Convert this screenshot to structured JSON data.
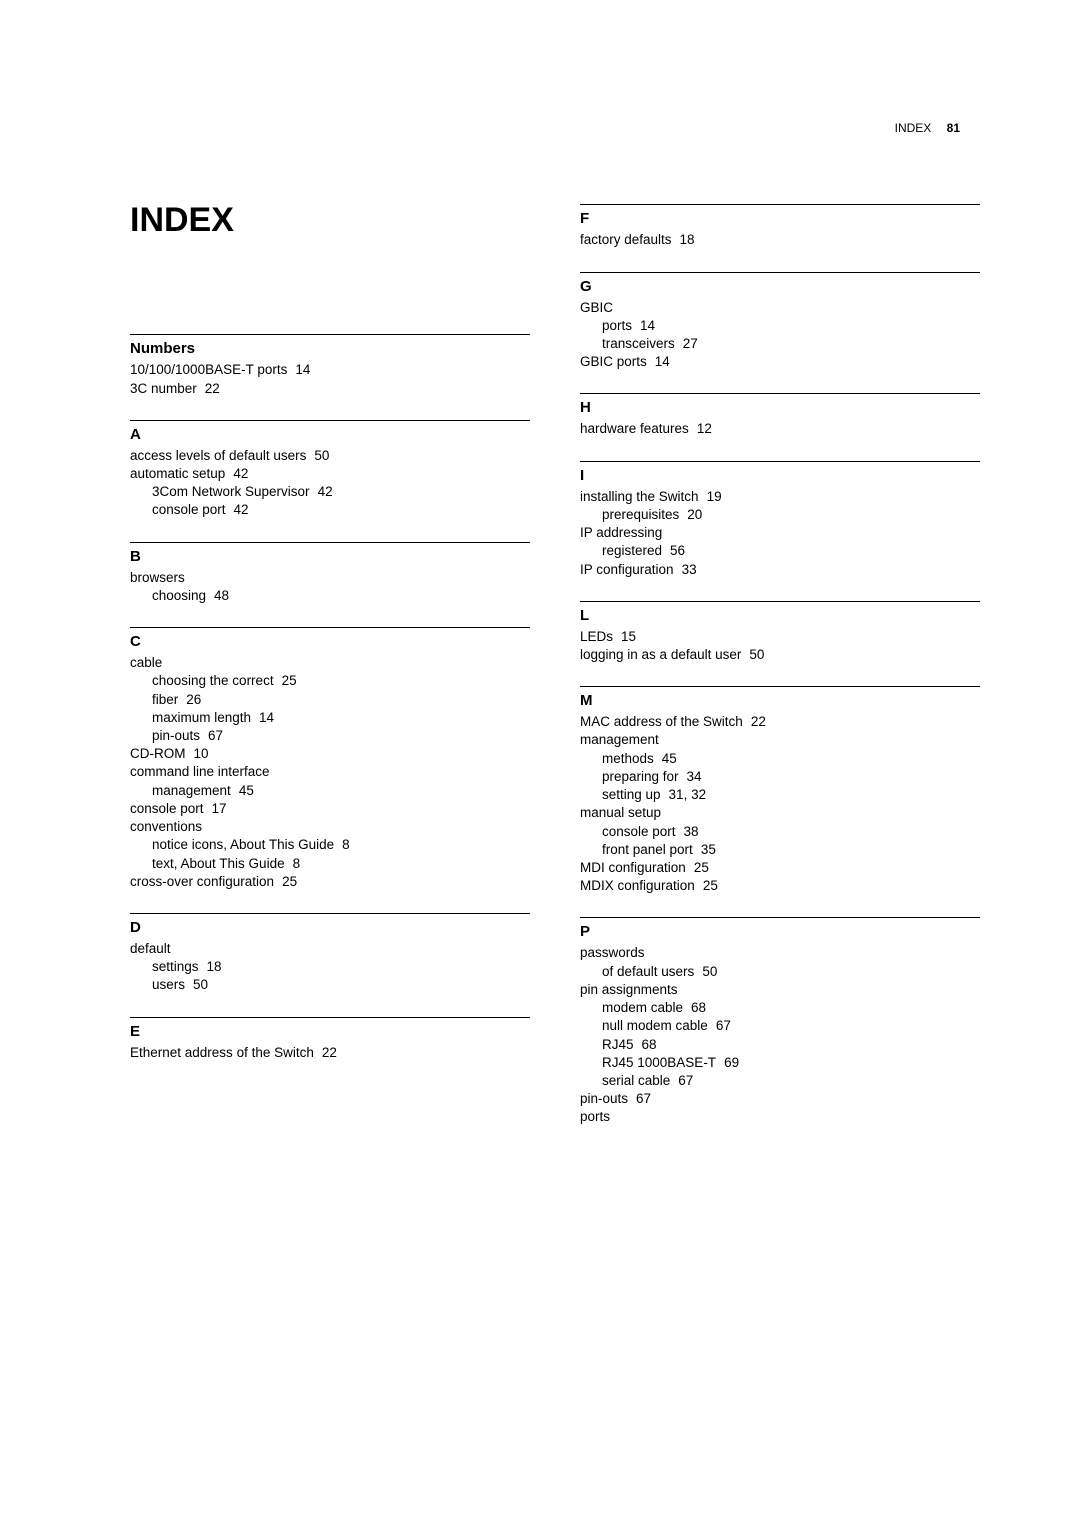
{
  "page_header": {
    "label": "INDEX",
    "number": "81"
  },
  "title": "INDEX",
  "left_sections": [
    {
      "letter": "Numbers",
      "entries": [
        {
          "text": "10/100/1000BASE-T ports",
          "page": "14",
          "sub": false
        },
        {
          "text": "3C number",
          "page": "22",
          "sub": false
        }
      ]
    },
    {
      "letter": "A",
      "entries": [
        {
          "text": "access levels of default users",
          "page": "50",
          "sub": false
        },
        {
          "text": "automatic setup",
          "page": "42",
          "sub": false
        },
        {
          "text": "3Com Network Supervisor",
          "page": "42",
          "sub": true
        },
        {
          "text": "console port",
          "page": "42",
          "sub": true
        }
      ]
    },
    {
      "letter": "B",
      "entries": [
        {
          "text": "browsers",
          "page": "",
          "sub": false
        },
        {
          "text": "choosing",
          "page": "48",
          "sub": true
        }
      ]
    },
    {
      "letter": "C",
      "entries": [
        {
          "text": "cable",
          "page": "",
          "sub": false
        },
        {
          "text": "choosing the correct",
          "page": "25",
          "sub": true
        },
        {
          "text": "fiber",
          "page": "26",
          "sub": true
        },
        {
          "text": "maximum length",
          "page": "14",
          "sub": true
        },
        {
          "text": "pin-outs",
          "page": "67",
          "sub": true
        },
        {
          "text": "CD-ROM",
          "page": "10",
          "sub": false
        },
        {
          "text": "command line interface",
          "page": "",
          "sub": false
        },
        {
          "text": "management",
          "page": "45",
          "sub": true
        },
        {
          "text": "console port",
          "page": "17",
          "sub": false
        },
        {
          "text": "conventions",
          "page": "",
          "sub": false
        },
        {
          "text": "notice icons, About This Guide",
          "page": "8",
          "sub": true
        },
        {
          "text": "text, About This Guide",
          "page": "8",
          "sub": true
        },
        {
          "text": "cross-over configuration",
          "page": "25",
          "sub": false
        }
      ]
    },
    {
      "letter": "D",
      "entries": [
        {
          "text": "default",
          "page": "",
          "sub": false
        },
        {
          "text": "settings",
          "page": "18",
          "sub": true
        },
        {
          "text": "users",
          "page": "50",
          "sub": true
        }
      ]
    },
    {
      "letter": "E",
      "entries": [
        {
          "text": "Ethernet address of the Switch",
          "page": "22",
          "sub": false
        }
      ]
    }
  ],
  "right_sections": [
    {
      "letter": "F",
      "entries": [
        {
          "text": "factory defaults",
          "page": "18",
          "sub": false
        }
      ]
    },
    {
      "letter": "G",
      "entries": [
        {
          "text": "GBIC",
          "page": "",
          "sub": false
        },
        {
          "text": "ports",
          "page": "14",
          "sub": true
        },
        {
          "text": "transceivers",
          "page": "27",
          "sub": true
        },
        {
          "text": "GBIC ports",
          "page": "14",
          "sub": false
        }
      ]
    },
    {
      "letter": "H",
      "entries": [
        {
          "text": "hardware features",
          "page": "12",
          "sub": false
        }
      ]
    },
    {
      "letter": "I",
      "entries": [
        {
          "text": "installing the Switch",
          "page": "19",
          "sub": false
        },
        {
          "text": "prerequisites",
          "page": "20",
          "sub": true
        },
        {
          "text": "IP addressing",
          "page": "",
          "sub": false
        },
        {
          "text": "registered",
          "page": "56",
          "sub": true
        },
        {
          "text": "IP configuration",
          "page": "33",
          "sub": false
        }
      ]
    },
    {
      "letter": "L",
      "entries": [
        {
          "text": "LEDs",
          "page": "15",
          "sub": false
        },
        {
          "text": "logging in as a default user",
          "page": "50",
          "sub": false
        }
      ]
    },
    {
      "letter": "M",
      "entries": [
        {
          "text": "MAC address of the Switch",
          "page": "22",
          "sub": false
        },
        {
          "text": "management",
          "page": "",
          "sub": false
        },
        {
          "text": "methods",
          "page": "45",
          "sub": true
        },
        {
          "text": "preparing for",
          "page": "34",
          "sub": true
        },
        {
          "text": "setting up",
          "page": "31, 32",
          "sub": true
        },
        {
          "text": "manual setup",
          "page": "",
          "sub": false
        },
        {
          "text": "console port",
          "page": "38",
          "sub": true
        },
        {
          "text": "front panel port",
          "page": "35",
          "sub": true
        },
        {
          "text": "MDI configuration",
          "page": "25",
          "sub": false
        },
        {
          "text": "MDIX configuration",
          "page": "25",
          "sub": false
        }
      ]
    },
    {
      "letter": "P",
      "entries": [
        {
          "text": "passwords",
          "page": "",
          "sub": false
        },
        {
          "text": "of default users",
          "page": "50",
          "sub": true
        },
        {
          "text": "pin assignments",
          "page": "",
          "sub": false
        },
        {
          "text": "modem cable",
          "page": "68",
          "sub": true
        },
        {
          "text": "null modem cable",
          "page": "67",
          "sub": true
        },
        {
          "text": "RJ45",
          "page": "68",
          "sub": true
        },
        {
          "text": "RJ45 1000BASE-T",
          "page": "69",
          "sub": true
        },
        {
          "text": "serial cable",
          "page": "67",
          "sub": true
        },
        {
          "text": "pin-outs",
          "page": "67",
          "sub": false
        },
        {
          "text": "ports",
          "page": "",
          "sub": false
        }
      ]
    }
  ]
}
